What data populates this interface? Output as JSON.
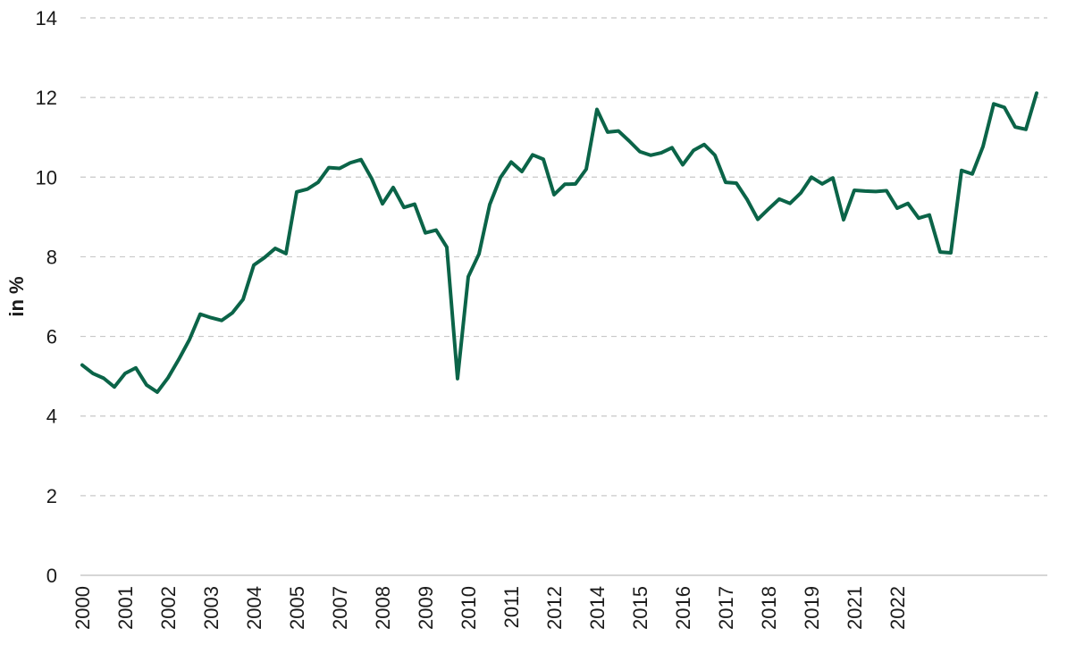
{
  "chart_data": {
    "type": "line",
    "title": "",
    "xlabel": "",
    "ylabel": "in %",
    "ylim": [
      0,
      14
    ],
    "y_ticks": [
      0,
      2,
      4,
      6,
      8,
      10,
      12,
      14
    ],
    "grid": true,
    "legend": "none",
    "x_tick_labels": [
      "2000",
      "2001",
      "2002",
      "2003",
      "2004",
      "2005",
      "2007",
      "2008",
      "2009",
      "2010",
      "2011",
      "2012",
      "2014",
      "2015",
      "2016",
      "2017",
      "2018",
      "2019",
      "2021",
      "2022"
    ],
    "x_tick_index_step": 4,
    "series": [
      {
        "name": "in %",
        "color": "#0b6448",
        "values": [
          5.28,
          5.07,
          4.95,
          4.73,
          5.07,
          5.21,
          4.78,
          4.6,
          4.96,
          5.42,
          5.92,
          6.56,
          6.47,
          6.4,
          6.59,
          6.93,
          7.79,
          7.98,
          8.21,
          8.08,
          9.63,
          9.7,
          9.87,
          10.24,
          10.22,
          10.36,
          10.44,
          9.96,
          9.33,
          9.74,
          9.24,
          9.32,
          8.6,
          8.67,
          8.24,
          4.94,
          7.5,
          8.07,
          9.31,
          9.99,
          10.38,
          10.14,
          10.56,
          10.45,
          9.56,
          9.82,
          9.83,
          10.2,
          11.7,
          11.13,
          11.16,
          10.91,
          10.64,
          10.55,
          10.61,
          10.74,
          10.31,
          10.67,
          10.82,
          10.55,
          9.87,
          9.85,
          9.44,
          8.94,
          9.2,
          9.45,
          9.34,
          9.6,
          10.0,
          9.83,
          9.98,
          8.93,
          9.67,
          9.65,
          9.64,
          9.66,
          9.22,
          9.34,
          8.97,
          9.05,
          8.12,
          8.1,
          10.17,
          10.08,
          10.77,
          11.84,
          11.75,
          11.26,
          11.2,
          12.11
        ]
      }
    ]
  }
}
